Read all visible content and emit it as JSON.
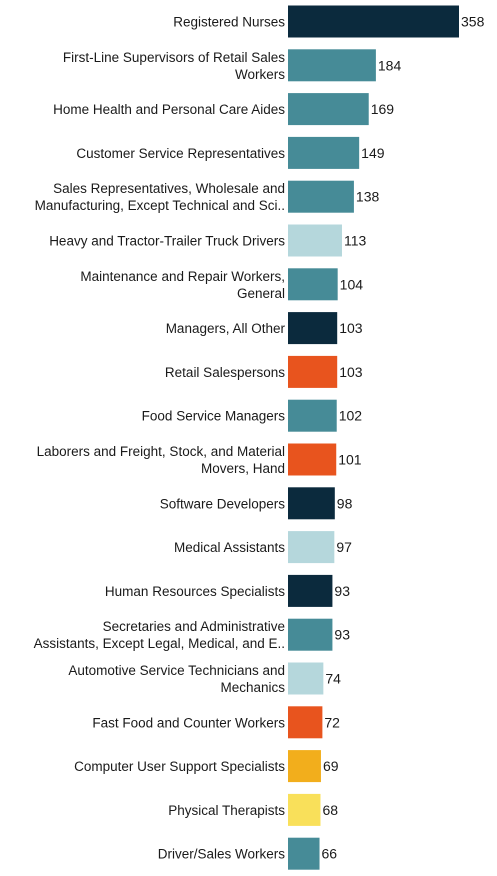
{
  "chart_data": {
    "type": "bar",
    "orientation": "horizontal",
    "title": "",
    "xlabel": "",
    "ylabel": "",
    "grid": false,
    "legend": "none",
    "categories": [
      "Registered Nurses",
      "First-Line Supervisors of Retail Sales Workers",
      "Home Health and Personal Care Aides",
      "Customer Service Representatives",
      "Sales Representatives, Wholesale and Manufacturing, Except Technical and Sci..",
      "Heavy and Tractor-Trailer Truck Drivers",
      "Maintenance and Repair Workers, General",
      "Managers, All Other",
      "Retail Salespersons",
      "Food Service Managers",
      "Laborers and Freight, Stock, and Material Movers, Hand",
      "Software Developers",
      "Medical Assistants",
      "Human Resources Specialists",
      "Secretaries and Administrative Assistants, Except Legal, Medical, and E..",
      "Automotive Service Technicians and Mechanics",
      "Fast Food and Counter Workers",
      "Computer User Support Specialists",
      "Physical Therapists",
      "Driver/Sales Workers"
    ],
    "label_lines": [
      [
        "Registered Nurses"
      ],
      [
        "First-Line Supervisors of Retail Sales",
        "Workers"
      ],
      [
        "Home Health and Personal Care Aides"
      ],
      [
        "Customer Service Representatives"
      ],
      [
        "Sales Representatives, Wholesale and",
        "Manufacturing, Except Technical and Sci.."
      ],
      [
        "Heavy and Tractor-Trailer Truck Drivers"
      ],
      [
        "Maintenance and Repair Workers,",
        "General"
      ],
      [
        "Managers, All Other"
      ],
      [
        "Retail Salespersons"
      ],
      [
        "Food Service Managers"
      ],
      [
        "Laborers and Freight, Stock, and Material",
        "Movers, Hand"
      ],
      [
        "Software Developers"
      ],
      [
        "Medical Assistants"
      ],
      [
        "Human Resources Specialists"
      ],
      [
        "Secretaries and Administrative",
        "Assistants, Except Legal, Medical, and E.."
      ],
      [
        "Automotive Service Technicians and",
        "Mechanics"
      ],
      [
        "Fast Food and Counter Workers"
      ],
      [
        "Computer User Support Specialists"
      ],
      [
        "Physical Therapists"
      ],
      [
        "Driver/Sales Workers"
      ]
    ],
    "values": [
      358,
      184,
      169,
      149,
      138,
      113,
      104,
      103,
      103,
      102,
      101,
      98,
      97,
      93,
      93,
      74,
      72,
      69,
      68,
      66
    ],
    "colors": [
      "#0b2a3d",
      "#468b97",
      "#468b97",
      "#468b97",
      "#468b97",
      "#b5d7dc",
      "#468b97",
      "#0b2a3d",
      "#e8541e",
      "#468b97",
      "#e8541e",
      "#0b2a3d",
      "#b5d7dc",
      "#0b2a3d",
      "#468b97",
      "#b5d7dc",
      "#e8541e",
      "#f2ae1c",
      "#f9e05a",
      "#468b97"
    ],
    "xlim": [
      0,
      358
    ]
  }
}
